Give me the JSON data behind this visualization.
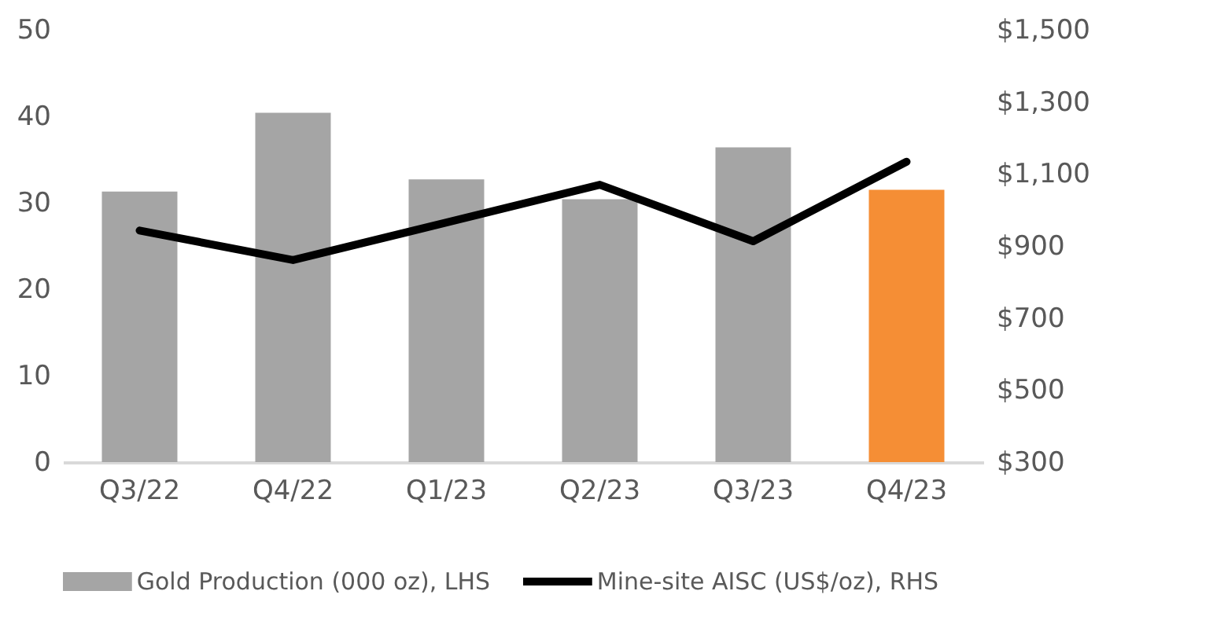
{
  "chart_data": {
    "type": "bar",
    "categories": [
      "Q3/22",
      "Q4/22",
      "Q1/23",
      "Q2/23",
      "Q3/23",
      "Q4/23"
    ],
    "series": [
      {
        "name": "Gold Production (000 oz), LHS",
        "color": "#a5a5a5",
        "colors": [
          "#a5a5a5",
          "#a5a5a5",
          "#a5a5a5",
          "#a5a5a5",
          "#a5a5a5",
          "#f58e35"
        ],
        "values": [
          31.3,
          40.4,
          32.7,
          30.4,
          36.4,
          31.5
        ]
      },
      {
        "name": "Mine-site AISC (US$/oz), RHS",
        "type": "line",
        "axis": "y2",
        "color": "#000000",
        "values": [
          943,
          861,
          965,
          1070,
          913,
          1134
        ]
      }
    ],
    "ylim": [
      0,
      50
    ],
    "yticks": [
      0,
      10,
      20,
      30,
      40,
      50
    ],
    "y2lim": [
      300,
      1500
    ],
    "y2ticks": [
      {
        "value": 300,
        "label": "$300"
      },
      {
        "value": 500,
        "label": "$500"
      },
      {
        "value": 700,
        "label": "$700"
      },
      {
        "value": 900,
        "label": "$900"
      },
      {
        "value": 1100,
        "label": "$1,100"
      },
      {
        "value": 1300,
        "label": "$1,300"
      },
      {
        "value": 1500,
        "label": "$1,500"
      }
    ],
    "grid": false,
    "legend": "bottom"
  }
}
